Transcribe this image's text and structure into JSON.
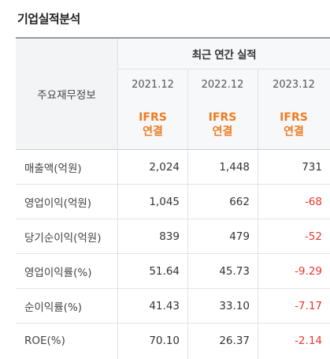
{
  "title": "기업실적분석",
  "table": {
    "row_header": "주요재무정보",
    "group_header": "최근 연간 실적",
    "columns": [
      {
        "period": "2021.12",
        "basis_line1": "IFRS",
        "basis_line2": "연결"
      },
      {
        "period": "2022.12",
        "basis_line1": "IFRS",
        "basis_line2": "연결"
      },
      {
        "period": "2023.12",
        "basis_line1": "IFRS",
        "basis_line2": "연결"
      }
    ],
    "rows": [
      {
        "label": "매출액(억원)",
        "values": [
          "2,024",
          "1,448",
          "731"
        ]
      },
      {
        "label": "영업이익(억원)",
        "values": [
          "1,045",
          "662",
          "-68"
        ]
      },
      {
        "label": "당기순이익(억원)",
        "values": [
          "839",
          "479",
          "-52"
        ]
      },
      {
        "label": "영업이익률(%)",
        "values": [
          "51.64",
          "45.73",
          "-9.29"
        ]
      },
      {
        "label": "순이익률(%)",
        "values": [
          "41.43",
          "33.10",
          "-7.17"
        ]
      },
      {
        "label": "ROE(%)",
        "values": [
          "70.10",
          "26.37",
          "-2.14"
        ]
      }
    ]
  },
  "colors": {
    "negative": "#e8382f",
    "ifrs": "#f07b21"
  }
}
